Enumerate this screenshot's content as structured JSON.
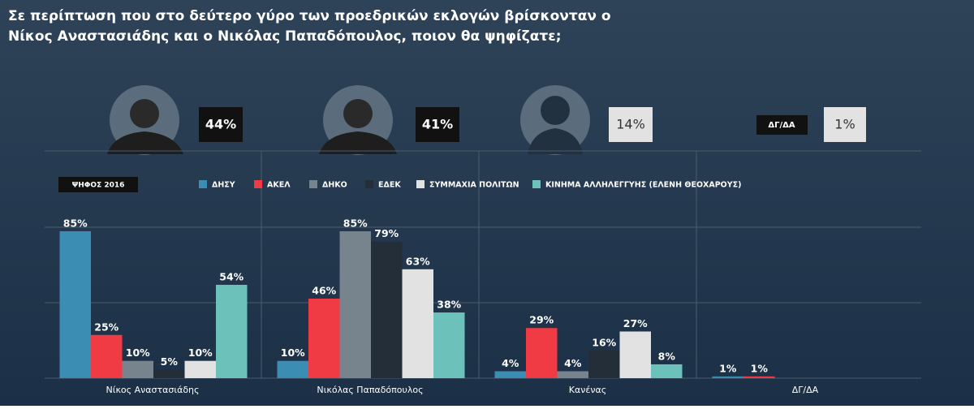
{
  "title_lines": [
    "Σε περίπτωση που στο δεύτερο γύρο των προεδρικών εκλογών βρίσκονταν ο",
    "Νίκος Αναστασιάδης και ο Νικόλας Παπαδόπουλος, ποιον θα ψηφίζατε;"
  ],
  "candidates": [
    {
      "result": "44%"
    },
    {
      "result": "41%"
    },
    {
      "result": "14%"
    },
    {
      "name": "ΔΓ/ΔΑ",
      "result": "1%"
    }
  ],
  "chart_data": {
    "type": "bar",
    "legend_title": "ΨΗΦΟΣ 2016",
    "categories": [
      "Νίκος Αναστασιάδης",
      "Νικόλας Παπαδόπουλος",
      "Κανένας",
      "ΔΓ/ΔΑ"
    ],
    "ylim": [
      0,
      100
    ],
    "series": [
      {
        "name": "ΔΗΣΥ",
        "color": "#3b8db3",
        "values": [
          85,
          10,
          4,
          1
        ],
        "value_labels": [
          "85%",
          "10%",
          "4%",
          "1%"
        ]
      },
      {
        "name": "ΑΚΕΛ",
        "color": "#f03b45",
        "values": [
          25,
          46,
          29,
          1
        ],
        "value_labels": [
          "25%",
          "46%",
          "29%",
          "1%"
        ]
      },
      {
        "name": "ΔΗΚΟ",
        "color": "#77838d",
        "values": [
          10,
          85,
          4,
          null
        ],
        "value_labels": [
          "10%",
          "85%",
          "4%",
          null
        ]
      },
      {
        "name": "ΕΔΕΚ",
        "color": "#232e38",
        "values": [
          5,
          79,
          16,
          null
        ],
        "value_labels": [
          "5%",
          "79%",
          "16%",
          null
        ]
      },
      {
        "name": "ΣΥΜΜΑΧΙΑ ΠΟΛΙΤΩΝ",
        "color": "#e2e2e2",
        "values": [
          10,
          63,
          27,
          null
        ],
        "value_labels": [
          "10%",
          "63%",
          "27%",
          null
        ]
      },
      {
        "name": "ΚΙΝΗΜΑ ΑΛΛΗΛΕΓΓΥΗΣ (ΕΛΕΝΗ ΘΕΟΧΑΡΟΥΣ)",
        "color": "#6cc2ba",
        "values": [
          54,
          38,
          8,
          null
        ],
        "value_labels": [
          "54%",
          "38%",
          "8%",
          null
        ]
      }
    ]
  }
}
